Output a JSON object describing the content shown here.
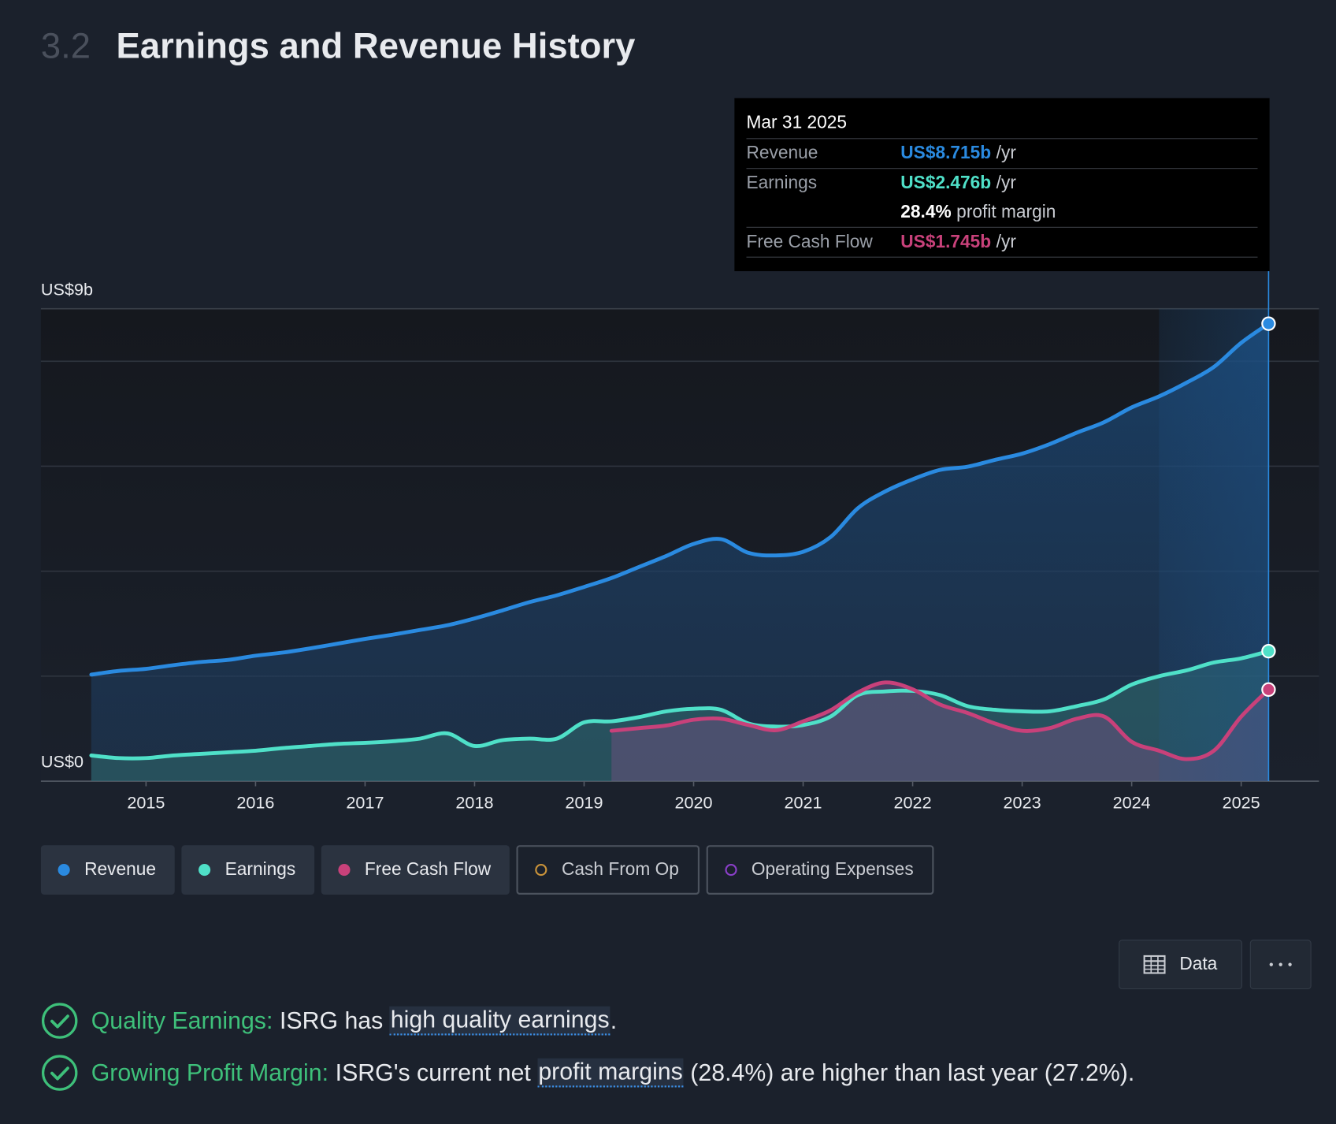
{
  "section_number": "3.2",
  "title": "Earnings and Revenue History",
  "chart_data": {
    "type": "line",
    "x": [
      2014.5,
      2014.75,
      2015,
      2015.25,
      2015.5,
      2015.75,
      2016,
      2016.25,
      2016.5,
      2016.75,
      2017,
      2017.25,
      2017.5,
      2017.75,
      2018,
      2018.25,
      2018.5,
      2018.75,
      2019,
      2019.25,
      2019.5,
      2019.75,
      2020,
      2020.25,
      2020.5,
      2020.75,
      2021,
      2021.25,
      2021.5,
      2021.75,
      2022,
      2022.25,
      2022.5,
      2022.75,
      2023,
      2023.25,
      2023.5,
      2023.75,
      2024,
      2024.25,
      2024.5,
      2024.75,
      2025,
      2025.25
    ],
    "xlim": [
      2014.04,
      2025.71
    ],
    "xticks": [
      2015,
      2016,
      2017,
      2018,
      2019,
      2020,
      2021,
      2022,
      2023,
      2024,
      2025
    ],
    "ylim": [
      0,
      9
    ],
    "yticks": [
      {
        "value": 0,
        "label": "US$0"
      },
      {
        "value": 9,
        "label": "US$9b"
      }
    ],
    "grid_values": [
      2,
      4,
      6,
      8
    ],
    "area": true,
    "highlight_range": [
      2024.25,
      2025.25
    ],
    "series": [
      {
        "name": "Revenue",
        "color": "#2a8ae0",
        "values": [
          2.03,
          2.1,
          2.14,
          2.21,
          2.27,
          2.31,
          2.39,
          2.45,
          2.53,
          2.62,
          2.71,
          2.79,
          2.88,
          2.97,
          3.1,
          3.25,
          3.41,
          3.54,
          3.7,
          3.87,
          4.08,
          4.29,
          4.52,
          4.61,
          4.35,
          4.3,
          4.37,
          4.65,
          5.2,
          5.52,
          5.75,
          5.93,
          5.99,
          6.12,
          6.24,
          6.42,
          6.64,
          6.84,
          7.12,
          7.33,
          7.59,
          7.89,
          8.35,
          8.715
        ]
      },
      {
        "name": "Earnings",
        "color": "#4fe0c8",
        "values": [
          0.49,
          0.44,
          0.44,
          0.49,
          0.52,
          0.55,
          0.58,
          0.63,
          0.67,
          0.71,
          0.73,
          0.76,
          0.81,
          0.91,
          0.67,
          0.78,
          0.81,
          0.81,
          1.12,
          1.14,
          1.22,
          1.33,
          1.38,
          1.36,
          1.1,
          1.04,
          1.07,
          1.23,
          1.64,
          1.71,
          1.72,
          1.64,
          1.43,
          1.36,
          1.33,
          1.33,
          1.43,
          1.56,
          1.84,
          2.0,
          2.11,
          2.26,
          2.34,
          2.476
        ]
      },
      {
        "name": "Free Cash Flow",
        "color": "#c8417a",
        "values": [
          null,
          null,
          null,
          null,
          null,
          null,
          null,
          null,
          null,
          null,
          null,
          null,
          null,
          null,
          null,
          null,
          null,
          null,
          null,
          0.96,
          1.01,
          1.06,
          1.17,
          1.19,
          1.07,
          0.97,
          1.14,
          1.35,
          1.69,
          1.88,
          1.75,
          1.46,
          1.3,
          1.1,
          0.96,
          1.01,
          1.19,
          1.23,
          0.75,
          0.58,
          0.42,
          0.58,
          1.23,
          1.745
        ]
      }
    ],
    "inactive_series": [
      {
        "name": "Cash From Op",
        "color": "#c8923a"
      },
      {
        "name": "Operating Expenses",
        "color": "#8a3fc8"
      }
    ],
    "tooltip": {
      "date": "Mar 31 2025",
      "rows": [
        {
          "label": "Revenue",
          "value": "US$8.715b",
          "unit": "/yr"
        },
        {
          "label": "Earnings",
          "value": "US$2.476b",
          "unit": "/yr"
        },
        {
          "value": "28.4%",
          "unit": "profit margin"
        },
        {
          "label": "Free Cash Flow",
          "value": "US$1.745b",
          "unit": "/yr"
        }
      ]
    }
  },
  "data_button": "Data",
  "insights": [
    {
      "label": "Quality Earnings:",
      "before": "ISRG has ",
      "link": "high quality earnings",
      "after": "."
    },
    {
      "label": "Growing Profit Margin:",
      "before": "ISRG's current net ",
      "link": "profit margins",
      "after": " (28.4%) are higher than last year (27.2%)."
    }
  ]
}
